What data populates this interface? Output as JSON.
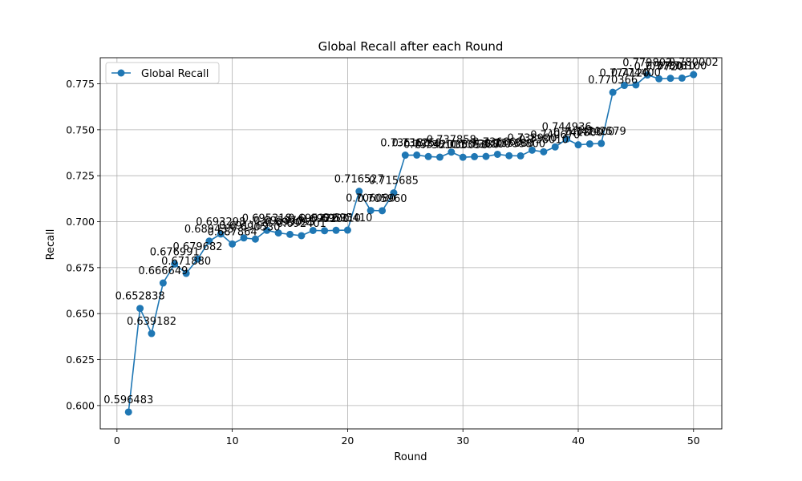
{
  "chart_data": {
    "type": "line",
    "title": "Global Recall after each Round",
    "xlabel": "Round",
    "ylabel": "Recall",
    "xlim": [
      -1.45,
      52.45
    ],
    "ylim": [
      0.587299,
      0.789186
    ],
    "xticks": [
      0,
      10,
      20,
      30,
      40,
      50
    ],
    "yticks": [
      0.6,
      0.625,
      0.65,
      0.675,
      0.7,
      0.725,
      0.75,
      0.775
    ],
    "ytick_labels": [
      "0.600",
      "0.625",
      "0.650",
      "0.675",
      "0.700",
      "0.725",
      "0.750",
      "0.775"
    ],
    "grid": true,
    "legend_position": "top-left",
    "color": "#1f77b4",
    "series": [
      {
        "name": "Global Recall",
        "x": [
          1,
          2,
          3,
          4,
          5,
          6,
          7,
          8,
          9,
          10,
          11,
          12,
          13,
          14,
          15,
          16,
          17,
          18,
          19,
          20,
          21,
          22,
          23,
          24,
          25,
          26,
          27,
          28,
          29,
          30,
          31,
          32,
          33,
          34,
          35,
          36,
          37,
          38,
          39,
          40,
          41,
          42,
          43,
          44,
          45,
          46,
          47,
          48,
          49,
          50
        ],
        "values": [
          0.596483,
          0.652838,
          0.639182,
          0.666649,
          0.676991,
          0.67188,
          0.679682,
          0.689435,
          0.693298,
          0.687864,
          0.691169,
          0.69053,
          0.695318,
          0.69387,
          0.693095,
          0.692401,
          0.695222,
          0.6951,
          0.69531,
          0.69541,
          0.716527,
          0.70608,
          0.70596,
          0.715685,
          0.73618,
          0.73625,
          0.73542,
          0.7351,
          0.737858,
          0.73505,
          0.73538,
          0.7355,
          0.73666,
          0.73588,
          0.7358,
          0.7389,
          0.73801,
          0.74067,
          0.744936,
          0.7418,
          0.7423,
          0.742579,
          0.770366,
          0.77412,
          0.7744,
          0.779802,
          0.77772,
          0.77801,
          0.7781,
          0.780002
        ],
        "labels": [
          "0.596483",
          "0.652838",
          "0.639182",
          "0.666649",
          "0.676991",
          "0.671880",
          "0.679682",
          "0.689435",
          "0.693298",
          "0.687864",
          "0.691169",
          "0.690530",
          "0.695318",
          "0.693870",
          "0.693095",
          "0.692401",
          "0.695222",
          "0.695100",
          "0.695310",
          "0.695410",
          "0.716527",
          "0.706080",
          "0.705960",
          "0.715685",
          "0.736180",
          "0.736250",
          "0.735420",
          "0.735100",
          "0.737858",
          "0.735050",
          "0.735380",
          "0.735500",
          "0.736660",
          "0.735880",
          "0.735800",
          "0.738900",
          "0.738010",
          "0.740670",
          "0.744936",
          "0.741800",
          "0.742300",
          "0.742579",
          "0.770366",
          "0.774120",
          "0.774400",
          "0.779802",
          "0.777720",
          "0.778010",
          "0.778100",
          "0.780002"
        ]
      }
    ]
  }
}
